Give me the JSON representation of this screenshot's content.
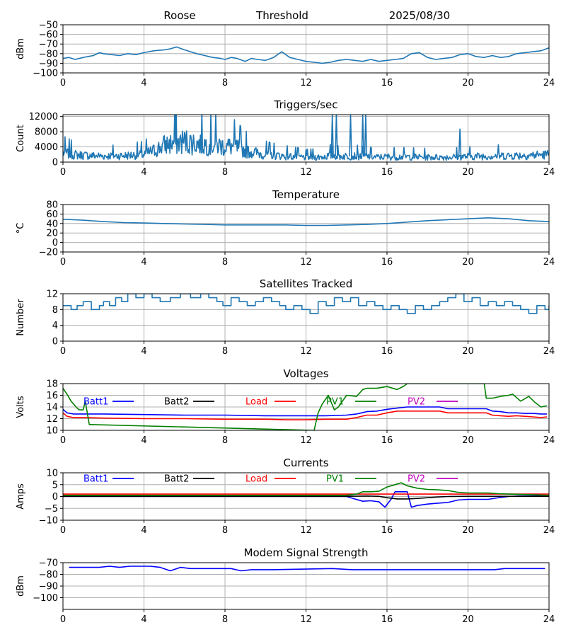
{
  "header": {
    "station": "Roose",
    "mode": "Threshold",
    "date": "2025/08/30"
  },
  "colors": {
    "default_line": "#1f77b4",
    "grid": "#b0b0b0"
  },
  "chart_data": [
    {
      "id": "signal",
      "type": "line",
      "title": "",
      "ylabel": "dBm",
      "xlim": [
        0,
        24
      ],
      "ylim": [
        -100,
        -50
      ],
      "xticks": [
        0,
        4,
        8,
        12,
        16,
        20,
        24
      ],
      "yticks": [
        -100,
        -90,
        -80,
        -70,
        -60,
        -50
      ],
      "series": [
        {
          "color": "#1f77b4",
          "x": [
            0,
            0.3,
            0.6,
            1,
            1.5,
            1.8,
            2,
            2.4,
            2.8,
            3.2,
            3.6,
            4,
            4.5,
            5,
            5.3,
            5.6,
            6,
            6.3,
            6.6,
            7,
            7.4,
            7.8,
            8,
            8.3,
            8.6,
            9,
            9.3,
            9.6,
            10,
            10.4,
            10.8,
            11.2,
            11.6,
            12,
            12.4,
            12.8,
            13.2,
            13.6,
            14,
            14.4,
            14.8,
            15.2,
            15.6,
            16,
            16.4,
            16.8,
            17.2,
            17.6,
            18,
            18.4,
            18.8,
            19.2,
            19.6,
            20,
            20.4,
            20.8,
            21.2,
            21.6,
            22,
            22.4,
            22.8,
            23.2,
            23.6,
            24
          ],
          "y": [
            -85,
            -84,
            -86,
            -84,
            -82,
            -79,
            -80,
            -81,
            -82,
            -80,
            -81,
            -79,
            -77,
            -76,
            -75,
            -73,
            -76,
            -78,
            -80,
            -82,
            -84,
            -85,
            -86,
            -84,
            -85,
            -88,
            -85,
            -86,
            -87,
            -84,
            -78,
            -84,
            -86,
            -88,
            -89,
            -90,
            -89,
            -87,
            -86,
            -87,
            -88,
            -86,
            -88,
            -87,
            -86,
            -85,
            -80,
            -79,
            -84,
            -86,
            -85,
            -84,
            -81,
            -80,
            -83,
            -84,
            -82,
            -84,
            -83,
            -80,
            -79,
            -78,
            -77,
            -74
          ]
        }
      ]
    },
    {
      "id": "triggers",
      "type": "line",
      "title": "Triggers/sec",
      "ylabel": "Count",
      "xlim": [
        0,
        24
      ],
      "ylim": [
        0,
        12500
      ],
      "xticks": [
        0,
        4,
        8,
        12,
        16,
        20,
        24
      ],
      "yticks": [
        0,
        4000,
        8000,
        12000
      ],
      "series": [
        {
          "color": "#1f77b4",
          "noise_seed": 7,
          "x": [
            0,
            0.5,
            1,
            2,
            3,
            4,
            4.5,
            5,
            5.5,
            6,
            6.5,
            7,
            7.5,
            8,
            8.5,
            9,
            9.5,
            10,
            10.5,
            11,
            11.5,
            12,
            12.5,
            13,
            13.3,
            13.7,
            14,
            14.5,
            15,
            15.5,
            16,
            17,
            18,
            19,
            20,
            21,
            22,
            23,
            24
          ],
          "y": [
            2500,
            2000,
            1800,
            1600,
            1700,
            2000,
            3000,
            4500,
            5000,
            5500,
            5000,
            4800,
            4500,
            4200,
            4000,
            3000,
            2500,
            2000,
            1800,
            1600,
            1400,
            1200,
            1300,
            1500,
            1800,
            1500,
            1600,
            1600,
            1500,
            1300,
            1400,
            1400,
            1300,
            1300,
            1500,
            1600,
            1700,
            1800,
            2000
          ]
        }
      ],
      "spikes": [
        {
          "x": 13.3,
          "y": 12500
        },
        {
          "x": 13.5,
          "y": 12500
        },
        {
          "x": 14.2,
          "y": 12500
        },
        {
          "x": 14.8,
          "y": 12500
        },
        {
          "x": 14.95,
          "y": 12500
        },
        {
          "x": 19.6,
          "y": 8800
        }
      ]
    },
    {
      "id": "temperature",
      "type": "line",
      "title": "Temperature",
      "ylabel": "°C",
      "xlim": [
        0,
        24
      ],
      "ylim": [
        -20,
        80
      ],
      "xticks": [
        0,
        4,
        8,
        12,
        16,
        20,
        24
      ],
      "yticks": [
        -20,
        0,
        20,
        40,
        60,
        80
      ],
      "series": [
        {
          "color": "#1f77b4",
          "x": [
            0,
            1,
            2,
            3,
            4,
            5,
            6,
            7,
            8,
            9,
            10,
            11,
            12,
            13,
            14,
            15,
            16,
            17,
            18,
            19,
            20,
            21,
            22,
            23,
            24
          ],
          "y": [
            49,
            47,
            44,
            42,
            41,
            40,
            39,
            38,
            37,
            37,
            37,
            37,
            36,
            36,
            37,
            38,
            40,
            43,
            46,
            48,
            50,
            52,
            50,
            46,
            44
          ]
        }
      ]
    },
    {
      "id": "satellites",
      "type": "line",
      "title": "Satellites Tracked",
      "ylabel": "Number",
      "xlim": [
        0,
        24
      ],
      "ylim": [
        0,
        12
      ],
      "xticks": [
        0,
        4,
        8,
        12,
        16,
        20,
        24
      ],
      "yticks": [
        0,
        4,
        8,
        12
      ],
      "series": [
        {
          "color": "#1f77b4",
          "step": true,
          "x": [
            0,
            0.4,
            0.7,
            1.0,
            1.4,
            1.8,
            2.0,
            2.3,
            2.6,
            2.9,
            3.2,
            3.6,
            4.0,
            4.4,
            4.8,
            5.3,
            5.8,
            6.3,
            6.8,
            7.2,
            7.6,
            7.9,
            8.3,
            8.7,
            9.1,
            9.5,
            9.9,
            10.3,
            10.7,
            11.0,
            11.4,
            11.8,
            12.2,
            12.6,
            13.0,
            13.4,
            13.8,
            14.2,
            14.6,
            15.0,
            15.4,
            15.8,
            16.2,
            16.6,
            17.0,
            17.4,
            17.8,
            18.2,
            18.6,
            19.0,
            19.4,
            19.8,
            20.2,
            20.6,
            21.0,
            21.4,
            21.8,
            22.2,
            22.6,
            23.0,
            23.4,
            23.8,
            24
          ],
          "y": [
            9,
            8,
            9,
            10,
            8,
            9,
            10,
            9,
            11,
            10,
            12,
            11,
            12,
            11,
            10,
            11,
            12,
            11,
            12,
            11,
            10,
            9,
            11,
            10,
            9,
            10,
            11,
            10,
            9,
            8,
            9,
            8,
            7,
            10,
            9,
            11,
            10,
            11,
            9,
            10,
            9,
            8,
            9,
            8,
            7,
            9,
            8,
            9,
            10,
            11,
            12,
            10,
            11,
            9,
            10,
            9,
            10,
            9,
            8,
            7,
            9,
            8,
            9
          ]
        }
      ]
    },
    {
      "id": "voltages",
      "type": "line",
      "title": "Voltages",
      "ylabel": "Volts",
      "xlim": [
        0,
        24
      ],
      "ylim": [
        10,
        18
      ],
      "xticks": [
        0,
        4,
        8,
        12,
        16,
        20,
        24
      ],
      "yticks": [
        10,
        12,
        14,
        16,
        18
      ],
      "series": [
        {
          "name": "Batt1",
          "color": "#0000ff",
          "x": [
            0,
            0.2,
            0.5,
            1,
            2,
            4,
            6,
            8,
            10,
            12,
            13,
            14,
            14.5,
            15,
            15.5,
            16,
            16.5,
            17,
            18,
            18.6,
            19,
            19.6,
            20,
            20.5,
            20.9,
            21.2,
            21.6,
            22,
            22.4,
            22.8,
            23.2,
            23.6,
            23.9
          ],
          "y": [
            13.6,
            13.0,
            12.8,
            12.8,
            12.8,
            12.7,
            12.6,
            12.6,
            12.5,
            12.5,
            12.5,
            12.6,
            12.8,
            13.2,
            13.3,
            13.6,
            13.8,
            14.0,
            14.0,
            14.0,
            13.7,
            13.7,
            13.7,
            13.7,
            13.7,
            13.3,
            13.2,
            13.0,
            13.0,
            12.9,
            12.9,
            12.8,
            12.8
          ]
        },
        {
          "name": "Batt2",
          "color": "#000000",
          "x": [],
          "y": []
        },
        {
          "name": "Load",
          "color": "#ff0000",
          "x": [
            0,
            0.2,
            0.5,
            1,
            2,
            4,
            6,
            8,
            10,
            11,
            12,
            13,
            14,
            14.5,
            15,
            15.5,
            16,
            16.5,
            17,
            18,
            18.6,
            19,
            20,
            20.5,
            20.9,
            21.2,
            21.6,
            22,
            22.4,
            22.8,
            23.2,
            23.6,
            23.9
          ],
          "y": [
            13.0,
            12.4,
            12.2,
            12.2,
            12.1,
            12.0,
            12.0,
            11.9,
            11.9,
            11.8,
            11.8,
            11.9,
            11.9,
            12.2,
            12.6,
            12.6,
            13.0,
            13.3,
            13.3,
            13.3,
            13.3,
            13.0,
            13.0,
            13.0,
            13.0,
            12.6,
            12.5,
            12.4,
            12.5,
            12.4,
            12.3,
            12.2,
            12.3
          ]
        },
        {
          "name": "PV1",
          "color": "#008000",
          "x": [
            0,
            0.2,
            0.4,
            0.7,
            0.8,
            1.0,
            1.1,
            1.3,
            12.4,
            12.5,
            12.6,
            12.8,
            13.1,
            13.4,
            13.6,
            14.0,
            14.5,
            14.8,
            15.0,
            15.5,
            16.0,
            16.2,
            16.5,
            16.8,
            17.0,
            20.8,
            20.9,
            21.2,
            21.6,
            22.0,
            22.2,
            22.6,
            23.0,
            23.3,
            23.6,
            23.9
          ],
          "y": [
            17.2,
            16.2,
            15.0,
            13.8,
            13.5,
            13.5,
            15.0,
            11.0,
            10.0,
            11.5,
            13.0,
            14.5,
            16.0,
            13.5,
            14.0,
            16.0,
            15.8,
            17.0,
            17.2,
            17.2,
            17.5,
            17.3,
            17.0,
            17.5,
            18.0,
            18.0,
            15.5,
            15.5,
            15.8,
            16.0,
            16.2,
            15.0,
            15.8,
            14.8,
            14.0,
            14.2
          ]
        },
        {
          "name": "PV2",
          "color": "#bf00bf",
          "x": [],
          "y": []
        }
      ]
    },
    {
      "id": "currents",
      "type": "line",
      "title": "Currents",
      "ylabel": "Amps",
      "xlim": [
        0,
        24
      ],
      "ylim": [
        -10,
        10
      ],
      "xticks": [
        0,
        4,
        8,
        12,
        16,
        20,
        24
      ],
      "yticks": [
        -10,
        -5,
        0,
        5,
        10
      ],
      "series": [
        {
          "name": "Batt1",
          "color": "#0000ff",
          "x": [
            0,
            2,
            4,
            6,
            8,
            10,
            12,
            13,
            14,
            14.4,
            14.8,
            15.2,
            15.6,
            15.9,
            16.2,
            16.4,
            16.8,
            17.0,
            17.2,
            17.5,
            18.0,
            18.5,
            19.0,
            19.5,
            20.0,
            20.5,
            21.0,
            21.5,
            22,
            22.5,
            23,
            23.5,
            23.9
          ],
          "y": [
            0,
            0,
            0,
            0,
            0,
            0,
            0,
            0,
            0,
            -1,
            -2,
            -1.8,
            -2.2,
            -4.5,
            -1.2,
            2.0,
            2.0,
            2.0,
            -4.5,
            -3.8,
            -3.2,
            -2.8,
            -2.5,
            -1.5,
            -1.2,
            -1.2,
            -1.2,
            -0.5,
            0,
            0.2,
            0.2,
            0.2,
            0.2
          ]
        },
        {
          "name": "Batt2",
          "color": "#000000",
          "x": [
            0,
            2,
            4,
            6,
            8,
            10,
            12,
            14,
            15,
            15.6,
            16.0,
            16.5,
            17.0,
            17.5,
            18.0,
            18.5,
            19.0,
            20,
            22,
            24
          ],
          "y": [
            0.1,
            0.1,
            0.1,
            0.1,
            0.1,
            0.1,
            0.1,
            0.1,
            0.2,
            0.1,
            -0.5,
            -1.0,
            -1.0,
            -0.8,
            -0.5,
            -0.2,
            0.0,
            0.1,
            0.1,
            0.1
          ]
        },
        {
          "name": "Load",
          "color": "#ff0000",
          "x": [
            0,
            4,
            8,
            12,
            16,
            20,
            24
          ],
          "y": [
            1.0,
            1.0,
            1.0,
            1.0,
            1.0,
            1.0,
            1.0
          ]
        },
        {
          "name": "PV1",
          "color": "#008000",
          "x": [
            0,
            12,
            14,
            14.5,
            14.8,
            15.2,
            15.6,
            16.0,
            16.4,
            16.7,
            17.0,
            17.5,
            18.0,
            18.5,
            19.0,
            19.5,
            20.0,
            20.5,
            21.0,
            21.5,
            22,
            23,
            24
          ],
          "y": [
            0.5,
            0.5,
            0.5,
            1.0,
            2.0,
            2.0,
            2.2,
            4.0,
            5.0,
            5.8,
            4.5,
            3.5,
            3.0,
            2.8,
            2.5,
            1.8,
            1.5,
            1.5,
            1.5,
            1.2,
            1.0,
            0.8,
            0.5
          ]
        },
        {
          "name": "PV2",
          "color": "#bf00bf",
          "x": [],
          "y": []
        }
      ]
    },
    {
      "id": "modem",
      "type": "line",
      "title": "Modem Signal Strength",
      "ylabel": "dBm",
      "xlim": [
        0,
        24
      ],
      "ylim": [
        -110,
        -70
      ],
      "xticks": [
        0,
        4,
        8,
        12,
        16,
        20,
        24
      ],
      "yticks": [
        -100,
        -90,
        -80,
        -70
      ],
      "series": [
        {
          "color": "#0000ff",
          "x": [
            0.3,
            1.8,
            2.3,
            2.8,
            3.3,
            4.3,
            4.8,
            5.3,
            5.8,
            6.3,
            7.3,
            8.3,
            8.8,
            9.3,
            10.3,
            13.3,
            14.3,
            21.3,
            21.8,
            23.8
          ],
          "y": [
            -74,
            -74,
            -73,
            -74,
            -73,
            -73,
            -74,
            -77,
            -74,
            -75,
            -75,
            -75,
            -77,
            -76,
            -76,
            -75,
            -76,
            -76,
            -75,
            -75
          ]
        }
      ]
    }
  ]
}
